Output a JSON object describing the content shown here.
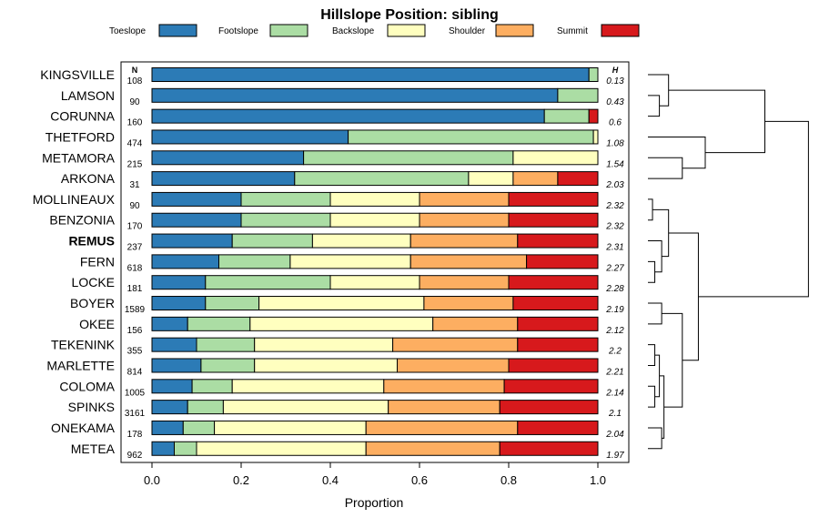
{
  "chart_data": {
    "type": "bar",
    "orientation": "horizontal",
    "stacked": true,
    "title": "Hillslope Position: sibling",
    "xlabel": "Proportion",
    "ylabel": "",
    "xlim": [
      0,
      1
    ],
    "xticks": [
      "0.0",
      "0.2",
      "0.4",
      "0.6",
      "0.8",
      "1.0"
    ],
    "xtick_values": [
      0,
      0.2,
      0.4,
      0.6,
      0.8,
      1.0
    ],
    "n_header": "N",
    "h_header": "H",
    "highlight": "REMUS",
    "legend_position": "top",
    "series": [
      {
        "name": "Toeslope",
        "color": "#2c7bb6"
      },
      {
        "name": "Footslope",
        "color": "#abdda4"
      },
      {
        "name": "Backslope",
        "color": "#ffffbf"
      },
      {
        "name": "Shoulder",
        "color": "#fdae61"
      },
      {
        "name": "Summit",
        "color": "#d7191c"
      }
    ],
    "categories": [
      "KINGSVILLE",
      "LAMSON",
      "CORUNNA",
      "THETFORD",
      "METAMORA",
      "ARKONA",
      "MOLLINEAUX",
      "BENZONIA",
      "REMUS",
      "FERN",
      "LOCKE",
      "BOYER",
      "OKEE",
      "TEKENINK",
      "MARLETTE",
      "COLOMA",
      "SPINKS",
      "ONEKAMA",
      "METEA"
    ],
    "rows": [
      {
        "name": "KINGSVILLE",
        "n": "108",
        "h": "0.13",
        "values": [
          0.98,
          0.02,
          0,
          0,
          0
        ]
      },
      {
        "name": "LAMSON",
        "n": "90",
        "h": "0.43",
        "values": [
          0.91,
          0.09,
          0,
          0,
          0
        ]
      },
      {
        "name": "CORUNNA",
        "n": "160",
        "h": "0.6",
        "values": [
          0.88,
          0.1,
          0,
          0,
          0.02
        ]
      },
      {
        "name": "THETFORD",
        "n": "474",
        "h": "1.08",
        "values": [
          0.44,
          0.55,
          0.01,
          0,
          0
        ]
      },
      {
        "name": "METAMORA",
        "n": "215",
        "h": "1.54",
        "values": [
          0.34,
          0.47,
          0.19,
          0,
          0
        ]
      },
      {
        "name": "ARKONA",
        "n": "31",
        "h": "2.03",
        "values": [
          0.32,
          0.39,
          0.1,
          0.1,
          0.09
        ]
      },
      {
        "name": "MOLLINEAUX",
        "n": "90",
        "h": "2.32",
        "values": [
          0.2,
          0.2,
          0.2,
          0.2,
          0.2
        ]
      },
      {
        "name": "BENZONIA",
        "n": "170",
        "h": "2.32",
        "values": [
          0.2,
          0.2,
          0.2,
          0.2,
          0.2
        ]
      },
      {
        "name": "REMUS",
        "n": "237",
        "h": "2.31",
        "values": [
          0.18,
          0.18,
          0.22,
          0.24,
          0.18
        ]
      },
      {
        "name": "FERN",
        "n": "618",
        "h": "2.27",
        "values": [
          0.15,
          0.16,
          0.27,
          0.26,
          0.16
        ]
      },
      {
        "name": "LOCKE",
        "n": "181",
        "h": "2.28",
        "values": [
          0.12,
          0.28,
          0.2,
          0.2,
          0.2
        ]
      },
      {
        "name": "BOYER",
        "n": "1589",
        "h": "2.19",
        "values": [
          0.12,
          0.12,
          0.37,
          0.2,
          0.19
        ]
      },
      {
        "name": "OKEE",
        "n": "156",
        "h": "2.12",
        "values": [
          0.08,
          0.14,
          0.41,
          0.19,
          0.18
        ]
      },
      {
        "name": "TEKENINK",
        "n": "355",
        "h": "2.2",
        "values": [
          0.1,
          0.13,
          0.31,
          0.28,
          0.18
        ]
      },
      {
        "name": "MARLETTE",
        "n": "814",
        "h": "2.21",
        "values": [
          0.11,
          0.12,
          0.32,
          0.25,
          0.2
        ]
      },
      {
        "name": "COLOMA",
        "n": "1005",
        "h": "2.14",
        "values": [
          0.09,
          0.09,
          0.34,
          0.27,
          0.21
        ]
      },
      {
        "name": "SPINKS",
        "n": "3161",
        "h": "2.1",
        "values": [
          0.08,
          0.08,
          0.37,
          0.25,
          0.22
        ]
      },
      {
        "name": "ONEKAMA",
        "n": "178",
        "h": "2.04",
        "values": [
          0.07,
          0.07,
          0.34,
          0.34,
          0.18
        ]
      },
      {
        "name": "METEA",
        "n": "962",
        "h": "1.97",
        "values": [
          0.05,
          0.05,
          0.38,
          0.3,
          0.22
        ]
      }
    ],
    "dendrogram": {
      "leaves": [
        "KINGSVILLE",
        "LAMSON",
        "CORUNNA",
        "THETFORD",
        "METAMORA",
        "ARKONA",
        "MOLLINEAUX",
        "BENZONIA",
        "REMUS",
        "FERN",
        "LOCKE",
        "BOYER",
        "OKEE",
        "TEKENINK",
        "MARLETTE",
        "COLOMA",
        "SPINKS",
        "ONEKAMA",
        "METEA"
      ],
      "merges": [
        {
          "a": [
            "leaf",
            6
          ],
          "b": [
            "leaf",
            7
          ],
          "height": 0.02
        },
        {
          "a": [
            "leaf",
            9
          ],
          "b": [
            "leaf",
            10
          ],
          "height": 0.03
        },
        {
          "a": [
            "leaf",
            13
          ],
          "b": [
            "leaf",
            14
          ],
          "height": 0.03
        },
        {
          "a": [
            "leaf",
            15
          ],
          "b": [
            "leaf",
            16
          ],
          "height": 0.03
        },
        {
          "a": [
            "leaf",
            1
          ],
          "b": [
            "leaf",
            2
          ],
          "height": 0.05
        },
        {
          "a": [
            "leaf",
            17
          ],
          "b": [
            "leaf",
            18
          ],
          "height": 0.06
        },
        {
          "a": [
            "leaf",
            8
          ],
          "b": [
            "node",
            1
          ],
          "height": 0.06
        },
        {
          "a": [
            "leaf",
            11
          ],
          "b": [
            "leaf",
            12
          ],
          "height": 0.06
        },
        {
          "a": [
            "node",
            2
          ],
          "b": [
            "node",
            3
          ],
          "height": 0.05
        },
        {
          "a": [
            "node",
            8
          ],
          "b": [
            "node",
            5
          ],
          "height": 0.07
        },
        {
          "a": [
            "node",
            0
          ],
          "b": [
            "node",
            6
          ],
          "height": 0.09
        },
        {
          "a": [
            "leaf",
            0
          ],
          "b": [
            "node",
            4
          ],
          "height": 0.09
        },
        {
          "a": [
            "leaf",
            4
          ],
          "b": [
            "leaf",
            5
          ],
          "height": 0.15
        },
        {
          "a": [
            "node",
            7
          ],
          "b": [
            "node",
            9
          ],
          "height": 0.15
        },
        {
          "a": [
            "leaf",
            3
          ],
          "b": [
            "node",
            12
          ],
          "height": 0.25
        },
        {
          "a": [
            "node",
            10
          ],
          "b": [
            "node",
            13
          ],
          "height": 0.22
        },
        {
          "a": [
            "node",
            11
          ],
          "b": [
            "node",
            14
          ],
          "height": 0.51
        },
        {
          "a": [
            "node",
            16
          ],
          "b": [
            "node",
            15
          ],
          "height": 0.7
        }
      ]
    }
  }
}
